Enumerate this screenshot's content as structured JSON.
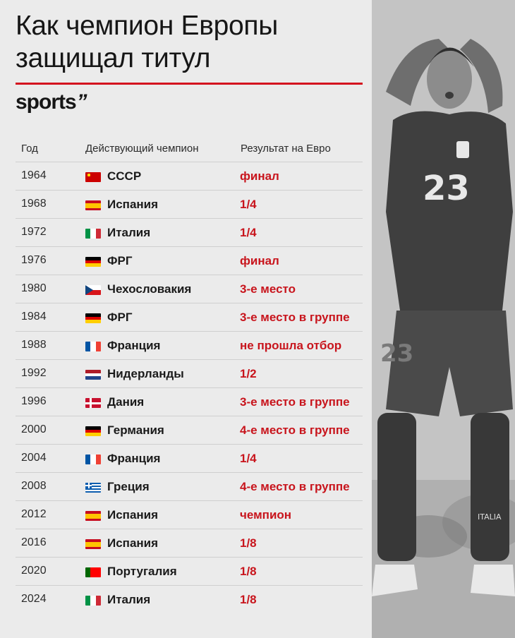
{
  "title": {
    "line1": "Как чемпион Европы",
    "line2": "защищал титул"
  },
  "brand": {
    "name": "sports",
    "mark": "’’"
  },
  "colors": {
    "accent": "#d4141f",
    "result_text": "#c8141c"
  },
  "table": {
    "headers": [
      "Год",
      "Действующий чемпион",
      "Результат на Евро"
    ],
    "rows": [
      {
        "year": "1964",
        "flag": "ussr-flag-icon",
        "champion": "СССР",
        "result": "финал"
      },
      {
        "year": "1968",
        "flag": "spain-flag-icon",
        "champion": "Испания",
        "result": "1/4"
      },
      {
        "year": "1972",
        "flag": "italy-flag-icon",
        "champion": "Италия",
        "result": "1/4"
      },
      {
        "year": "1976",
        "flag": "germany-flag-icon",
        "champion": "ФРГ",
        "result": "финал"
      },
      {
        "year": "1980",
        "flag": "czechoslovakia-flag-icon",
        "champion": "Чехословакия",
        "result": "3-е место"
      },
      {
        "year": "1984",
        "flag": "germany-flag-icon",
        "champion": "ФРГ",
        "result": "3-е место в группе"
      },
      {
        "year": "1988",
        "flag": "france-flag-icon",
        "champion": "Франция",
        "result": "не прошла отбор"
      },
      {
        "year": "1992",
        "flag": "netherlands-flag-icon",
        "champion": "Нидерланды",
        "result": "1/2"
      },
      {
        "year": "1996",
        "flag": "denmark-flag-icon",
        "champion": "Дания",
        "result": "3-е место в группе"
      },
      {
        "year": "2000",
        "flag": "germany-flag-icon",
        "champion": "Германия",
        "result": "4-е место в группе"
      },
      {
        "year": "2004",
        "flag": "france-flag-icon",
        "champion": "Франция",
        "result": "1/4"
      },
      {
        "year": "2008",
        "flag": "greece-flag-icon",
        "champion": "Греция",
        "result": "4-е место в группе"
      },
      {
        "year": "2012",
        "flag": "spain-flag-icon",
        "champion": "Испания",
        "result": "чемпион"
      },
      {
        "year": "2016",
        "flag": "spain-flag-icon",
        "champion": "Испания",
        "result": "1/8"
      },
      {
        "year": "2020",
        "flag": "portugal-flag-icon",
        "champion": "Португалия",
        "result": "1/8"
      },
      {
        "year": "2024",
        "flag": "italy-flag-icon",
        "champion": "Италия",
        "result": "1/8"
      }
    ]
  },
  "photo": {
    "icon": "italy-player-photo",
    "jersey_number": "23",
    "shorts_number": "23",
    "sock_text": "ITALIA"
  }
}
